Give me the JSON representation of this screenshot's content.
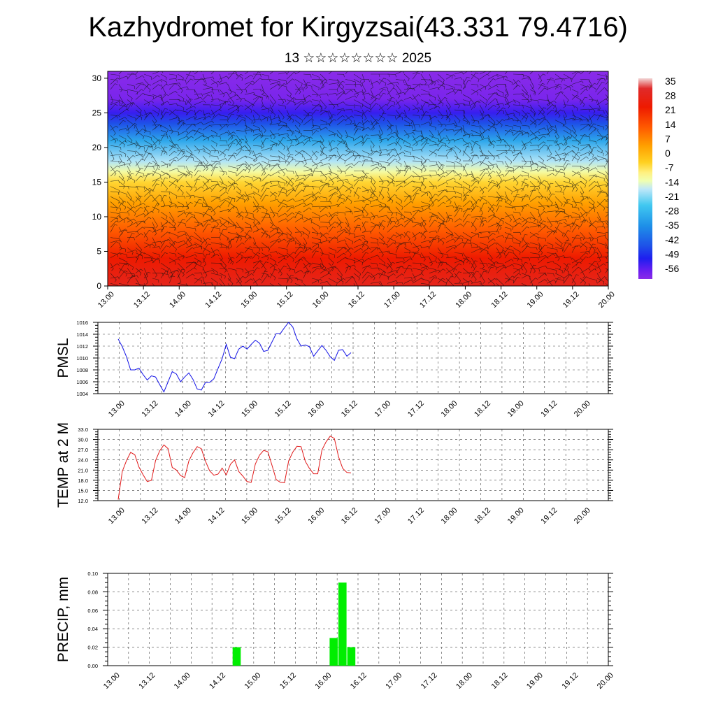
{
  "header": {
    "title": "Kazhydromet for Kirgyzsai(43.331 79.4716)",
    "subtitle": "13 ☆☆☆☆☆☆☆☆ 2025"
  },
  "chart_data": [
    {
      "type": "heatmap",
      "title": "",
      "xlabel": "",
      "ylabel": "",
      "x_tick_labels": [
        "13.00",
        "13.12",
        "14.00",
        "14.12",
        "15.00",
        "15.12",
        "16.00",
        "16.12",
        "17.00",
        "17.12",
        "18.00",
        "18.12",
        "19.00",
        "19.12",
        "20.00"
      ],
      "y_ticks": [
        0,
        5,
        10,
        15,
        20,
        25,
        30
      ],
      "ylim": [
        0,
        31
      ],
      "colorbar": {
        "labels": [
          "35",
          "28",
          "21",
          "14",
          "7",
          "0",
          "-7",
          "-14",
          "-21",
          "-28",
          "-35",
          "-42",
          "-49",
          "-56"
        ],
        "range": [
          -60,
          38
        ],
        "stops": [
          {
            "v": 38,
            "color": "#f2d6d6"
          },
          {
            "v": 33,
            "color": "#e02a2a"
          },
          {
            "v": 24,
            "color": "#ee1a00"
          },
          {
            "v": 14,
            "color": "#ff5a00"
          },
          {
            "v": 5,
            "color": "#ffa000"
          },
          {
            "v": -3,
            "color": "#ffd020"
          },
          {
            "v": -8,
            "color": "#fff080"
          },
          {
            "v": -12,
            "color": "#f0ffb0"
          },
          {
            "v": -16,
            "color": "#c0e8f8"
          },
          {
            "v": -24,
            "color": "#40c8f0"
          },
          {
            "v": -34,
            "color": "#1e90e8"
          },
          {
            "v": -44,
            "color": "#1e50e8"
          },
          {
            "v": -50,
            "color": "#1e1eef"
          },
          {
            "v": -56,
            "color": "#6a1ef0"
          },
          {
            "v": -60,
            "color": "#8a2be8"
          }
        ]
      },
      "temperature_profile": [
        {
          "level": 0,
          "value": 30
        },
        {
          "level": 4,
          "value": 24
        },
        {
          "level": 8,
          "value": 14
        },
        {
          "level": 12,
          "value": 5
        },
        {
          "level": 15,
          "value": -4
        },
        {
          "level": 16.5,
          "value": -11
        },
        {
          "level": 18,
          "value": -17
        },
        {
          "level": 21,
          "value": -30
        },
        {
          "level": 23.5,
          "value": -44
        },
        {
          "level": 25,
          "value": -52
        },
        {
          "level": 27,
          "value": -58
        },
        {
          "level": 31,
          "value": -60
        }
      ]
    },
    {
      "type": "line",
      "ylabel": "PMSL",
      "ylim": [
        1004,
        1016
      ],
      "y_tick_labels": [
        "1004",
        "1006",
        "1008",
        "1010",
        "1012",
        "1014",
        "1016"
      ],
      "x_tick_labels": [
        "13.00",
        "13.12",
        "14.00",
        "14.12",
        "15.00",
        "15.12",
        "16.00",
        "16.12",
        "17.00",
        "17.12",
        "18.00",
        "18.12",
        "19.00",
        "19.12",
        "20.00"
      ],
      "x_step_hours": 3,
      "color": "#1515e6",
      "values": [
        1013.2,
        1011.9,
        1010.2,
        1008.0,
        1008.0,
        1008.3,
        1007.2,
        1006.3,
        1007.0,
        1006.8,
        1005.5,
        1004.3,
        1006.0,
        1007.7,
        1007.3,
        1006.0,
        1006.8,
        1007.5,
        1006.4,
        1004.8,
        1004.6,
        1005.9,
        1005.9,
        1006.5,
        1008.2,
        1009.9,
        1012.3,
        1010.1,
        1009.9,
        1011.5,
        1012.0,
        1011.5,
        1012.3,
        1013.0,
        1012.5,
        1011.1,
        1011.3,
        1012.7,
        1014.1,
        1014.1,
        1015.1,
        1016.0,
        1015.2,
        1013.2,
        1012.0,
        1012.2,
        1011.9,
        1010.3,
        1011.2,
        1012.1,
        1011.3,
        1010.2,
        1009.6,
        1011.3,
        1011.4,
        1010.3,
        1010.9
      ]
    },
    {
      "type": "line",
      "ylabel": "TEMP at 2 M",
      "ylim": [
        12,
        33
      ],
      "y_tick_labels": [
        "12.0",
        "15.0",
        "18.0",
        "21.0",
        "24.0",
        "27.0",
        "30.0",
        "33.0"
      ],
      "x_tick_labels": [
        "13.00",
        "13.12",
        "14.00",
        "14.12",
        "15.00",
        "15.12",
        "16.00",
        "16.12",
        "17.00",
        "17.12",
        "18.00",
        "18.12",
        "19.00",
        "19.12",
        "20.00"
      ],
      "x_step_hours": 3,
      "color": "#e01a1a",
      "values": [
        12.3,
        20.6,
        23.8,
        26.2,
        25.5,
        21.9,
        19.6,
        17.6,
        18.0,
        23.8,
        26.7,
        28.4,
        27.3,
        21.8,
        21.0,
        19.4,
        18.8,
        23.7,
        26.1,
        27.9,
        27.3,
        23.6,
        20.8,
        19.5,
        19.8,
        21.6,
        19.6,
        22.7,
        24.0,
        20.6,
        19.2,
        17.6,
        17.4,
        22.8,
        25.4,
        26.8,
        26.4,
        22.4,
        18.2,
        17.4,
        17.3,
        23.7,
        26.3,
        28.0,
        27.9,
        23.6,
        21.5,
        19.9,
        19.9,
        26.9,
        29.3,
        31.0,
        30.3,
        24.9,
        21.5,
        20.3,
        20.2
      ]
    },
    {
      "type": "bar",
      "ylabel": "PRECIP, mm",
      "ylim": [
        0,
        0.1
      ],
      "y_tick_labels": [
        "0.00",
        "0.02",
        "0.04",
        "0.06",
        "0.08",
        "0.10"
      ],
      "x_tick_labels": [
        "13.00",
        "13.12",
        "14.00",
        "14.12",
        "15.00",
        "15.12",
        "16.00",
        "16.12",
        "17.00",
        "17.12",
        "18.00",
        "18.12",
        "19.00",
        "19.12",
        "20.00"
      ],
      "color": "#00ee00",
      "bars": [
        {
          "hour": 42,
          "value": 0.02
        },
        {
          "hour": 75,
          "value": 0.03
        },
        {
          "hour": 78,
          "value": 0.09
        },
        {
          "hour": 81,
          "value": 0.02
        }
      ]
    }
  ]
}
